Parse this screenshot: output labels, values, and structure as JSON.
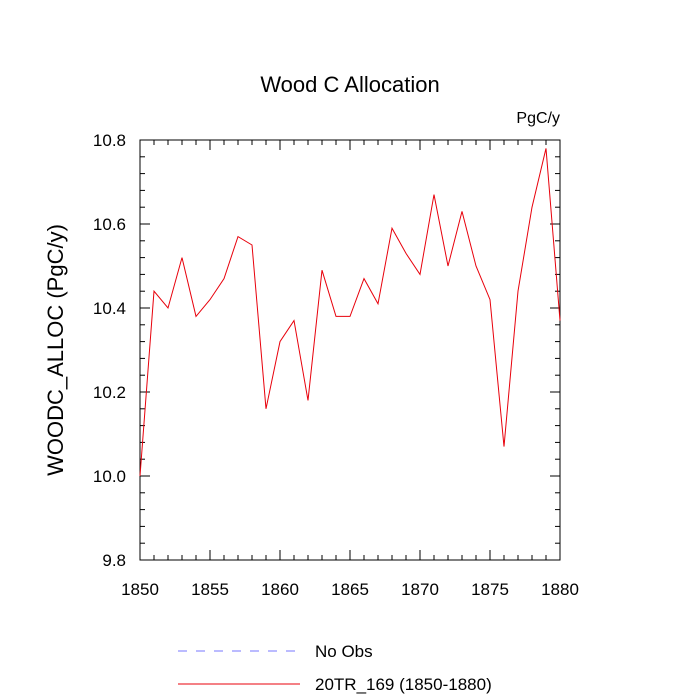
{
  "chart_data": {
    "type": "line",
    "title": "Wood C Allocation",
    "units": "PgC/y",
    "xlabel": "",
    "ylabel": "WOODC_ALLOC  (PgC/y)",
    "xlim": [
      1850,
      1880
    ],
    "ylim": [
      9.8,
      10.8
    ],
    "x_major_ticks": [
      1850,
      1855,
      1860,
      1865,
      1870,
      1875,
      1880
    ],
    "x_tick_labels": [
      "1850",
      "1855",
      "1860",
      "1865",
      "1870",
      "1875",
      "1880"
    ],
    "y_major_ticks": [
      9.8,
      10.0,
      10.2,
      10.4,
      10.6,
      10.8
    ],
    "y_tick_labels": [
      "9.8",
      "10.0",
      "10.2",
      "10.4",
      "10.6",
      "10.8"
    ],
    "series": [
      {
        "name": "20TR_169 (1850-1880)",
        "color": "#e8000b",
        "style": "solid",
        "x": [
          1850,
          1851,
          1852,
          1853,
          1854,
          1855,
          1856,
          1857,
          1858,
          1859,
          1860,
          1861,
          1862,
          1863,
          1864,
          1865,
          1866,
          1867,
          1868,
          1869,
          1870,
          1871,
          1872,
          1873,
          1874,
          1875,
          1876,
          1877,
          1878,
          1879,
          1880
        ],
        "values": [
          10.0,
          10.44,
          10.4,
          10.52,
          10.38,
          10.42,
          10.47,
          10.57,
          10.55,
          10.16,
          10.32,
          10.37,
          10.18,
          10.49,
          10.38,
          10.38,
          10.47,
          10.41,
          10.59,
          10.53,
          10.48,
          10.67,
          10.5,
          10.63,
          10.5,
          10.42,
          10.07,
          10.44,
          10.64,
          10.78,
          10.37
        ]
      }
    ],
    "legend": {
      "placement": "bottom",
      "entries": [
        {
          "label": "No Obs",
          "color": "#7777ff",
          "style": "dashed"
        },
        {
          "label": "20TR_169 (1850-1880)",
          "color": "#e8000b",
          "style": "solid"
        }
      ]
    }
  }
}
